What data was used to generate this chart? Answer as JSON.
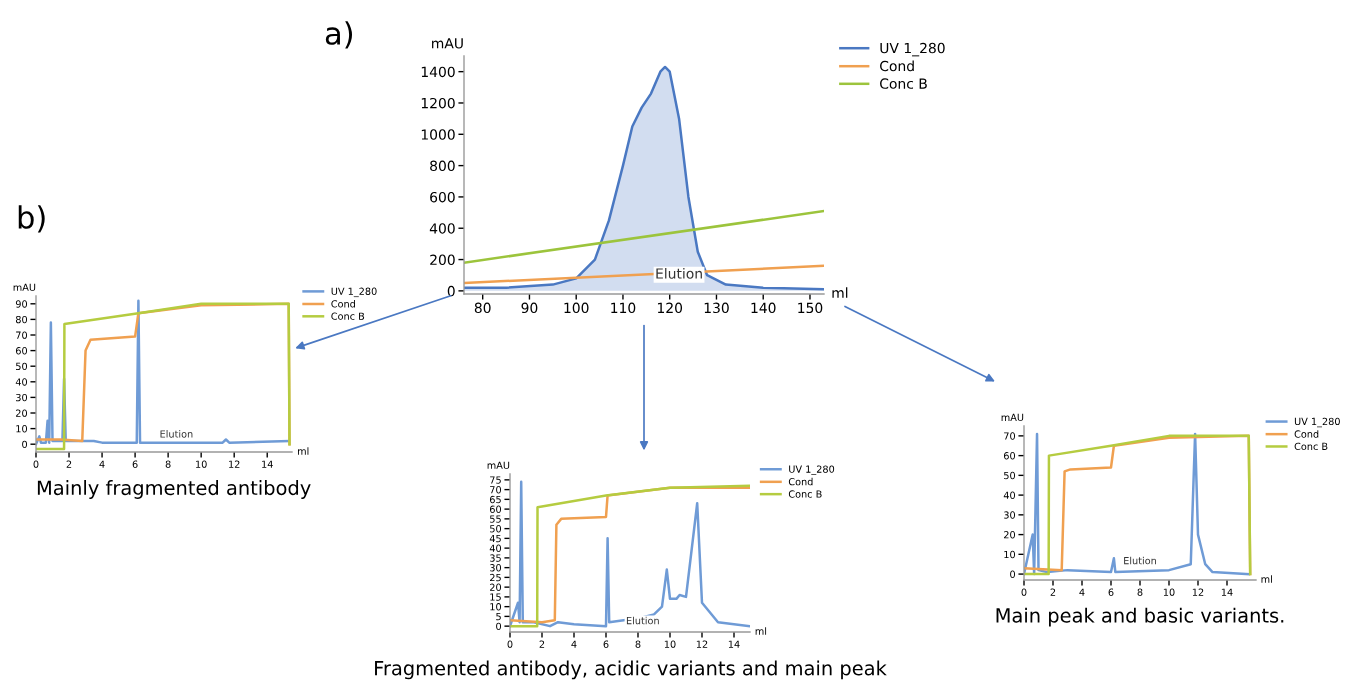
{
  "chart_data": [
    {
      "type": "line",
      "title": "a)",
      "xlabel": "ml",
      "ylabel": "mAU",
      "legend": "top right",
      "grid": false,
      "xlim": [
        76,
        153
      ],
      "xticks": [
        80,
        90,
        100,
        110,
        120,
        130,
        140,
        150
      ],
      "ylim": [
        -20,
        1500
      ],
      "yticks": [
        0,
        200,
        400,
        600,
        800,
        1000,
        1200,
        1400
      ],
      "annotations": [
        {
          "text": "Elution",
          "x": 122,
          "y": 60
        }
      ],
      "series": [
        {
          "name": "UV 1_280",
          "type": "area",
          "color": "#4a78c2",
          "x": [
            76,
            85,
            95,
            100,
            104,
            107,
            110,
            112,
            114,
            116,
            118,
            119,
            120,
            122,
            124,
            126,
            128,
            132,
            140,
            153
          ],
          "values": [
            20,
            20,
            40,
            80,
            200,
            450,
            800,
            1050,
            1170,
            1260,
            1400,
            1430,
            1400,
            1100,
            600,
            250,
            100,
            40,
            20,
            10
          ]
        },
        {
          "name": "Cond",
          "color": "#f0a050",
          "x": [
            76,
            153
          ],
          "values": [
            50,
            160
          ]
        },
        {
          "name": "Conc B",
          "color": "#9cc43c",
          "x": [
            76,
            153
          ],
          "values": [
            180,
            510
          ]
        }
      ]
    },
    {
      "type": "line",
      "title": "b)",
      "xlabel": "ml",
      "ylabel": "mAU",
      "legend": "top right",
      "grid": false,
      "xlim": [
        0,
        15.5
      ],
      "xticks": [
        0,
        2,
        4,
        6,
        8,
        10,
        12,
        14
      ],
      "ylim": [
        -5,
        95
      ],
      "yticks": [
        0,
        10,
        20,
        30,
        40,
        50,
        60,
        70,
        80,
        90
      ],
      "annotations": [
        "Mainly fragmented antibody",
        {
          "text": "Elution",
          "x": 8.5,
          "y": 3
        }
      ],
      "series": [
        {
          "name": "UV 1_280",
          "color": "#6f9bd6",
          "x": [
            0,
            0.2,
            0.3,
            0.6,
            0.7,
            0.8,
            0.9,
            1.0,
            1.6,
            1.7,
            1.8,
            3.5,
            4,
            6.1,
            6.2,
            6.3,
            11.3,
            11.5,
            11.7,
            15.3
          ],
          "values": [
            0,
            5,
            1,
            1,
            15,
            1,
            78,
            2,
            2,
            42,
            2,
            2,
            1,
            1,
            92,
            1,
            1,
            3,
            1,
            2
          ]
        },
        {
          "name": "Cond",
          "color": "#f0a050",
          "x": [
            0,
            1.5,
            2.8,
            3.0,
            3.3,
            6.0,
            6.2,
            10,
            15.3,
            15.35
          ],
          "values": [
            3,
            3,
            2,
            60,
            67,
            69,
            84,
            89,
            90,
            0
          ]
        },
        {
          "name": "Conc B",
          "color": "#b5cc40",
          "x": [
            0,
            1.7,
            1.72,
            6.2,
            10,
            15.3,
            15.35
          ],
          "values": [
            -3,
            -3,
            77,
            84,
            90,
            90,
            0
          ]
        }
      ]
    },
    {
      "type": "line",
      "xlabel": "ml",
      "ylabel": "mAU",
      "legend": "top right",
      "grid": false,
      "xlim": [
        0,
        15
      ],
      "xticks": [
        0,
        2,
        4,
        6,
        8,
        10,
        12,
        14
      ],
      "ylim": [
        -3,
        78
      ],
      "yticks": [
        0,
        5,
        10,
        15,
        20,
        25,
        30,
        35,
        40,
        45,
        50,
        55,
        60,
        65,
        70,
        75
      ],
      "annotations": [
        "Fragmented antibody, acidic variants and main peak",
        {
          "text": "Elution",
          "x": 8.3,
          "y": 0
        }
      ],
      "series": [
        {
          "name": "UV 1_280",
          "color": "#6f9bd6",
          "x": [
            0,
            0.5,
            0.6,
            0.7,
            0.8,
            1.5,
            2.5,
            3,
            4,
            6,
            6.1,
            6.2,
            8,
            9,
            9.5,
            9.8,
            10.0,
            10.4,
            10.6,
            11,
            11.7,
            12,
            13,
            15
          ],
          "values": [
            0,
            12,
            2,
            74,
            2,
            2,
            0,
            2,
            1,
            0,
            45,
            2,
            4,
            6,
            10,
            29,
            14,
            14,
            16,
            15,
            63,
            12,
            2,
            0
          ]
        },
        {
          "name": "Cond",
          "color": "#f0a050",
          "x": [
            0,
            2,
            2.8,
            2.9,
            3.2,
            6.0,
            6.1,
            10,
            15
          ],
          "values": [
            3,
            2,
            3,
            52,
            55,
            56,
            67,
            71,
            71
          ]
        },
        {
          "name": "Conc B",
          "color": "#b5cc40",
          "x": [
            0,
            1.7,
            1.72,
            6,
            10,
            15
          ],
          "values": [
            0,
            0,
            61,
            67,
            71,
            72
          ]
        }
      ]
    },
    {
      "type": "line",
      "xlabel": "ml",
      "ylabel": "mAU",
      "legend": "top right",
      "grid": false,
      "xlim": [
        0,
        16
      ],
      "xticks": [
        0,
        2,
        4,
        6,
        8,
        10,
        12,
        14
      ],
      "ylim": [
        -3,
        75
      ],
      "yticks": [
        0,
        10,
        20,
        30,
        40,
        50,
        60,
        70
      ],
      "annotations": [
        "Main peak and basic variants.",
        {
          "text": "Elution",
          "x": 8,
          "y": 4
        }
      ],
      "series": [
        {
          "name": "UV 1_280",
          "color": "#6f9bd6",
          "x": [
            0,
            0.6,
            0.7,
            0.9,
            1.0,
            1.6,
            3,
            6,
            6.2,
            6.3,
            10,
            11.5,
            11.8,
            12,
            12.5,
            13,
            15.5
          ],
          "values": [
            0,
            20,
            0,
            71,
            2,
            1,
            2,
            1,
            8,
            1,
            2,
            5,
            71,
            20,
            5,
            1,
            0
          ]
        },
        {
          "name": "Cond",
          "color": "#f0a050",
          "x": [
            0,
            2.6,
            2.8,
            3.2,
            6,
            6.2,
            10,
            15.5,
            15.6
          ],
          "values": [
            3,
            2,
            52,
            53,
            54,
            65,
            69,
            70,
            0
          ]
        },
        {
          "name": "Conc B",
          "color": "#b5cc40",
          "x": [
            0,
            1.7,
            1.72,
            6,
            10,
            15.5,
            15.6
          ],
          "values": [
            0,
            0,
            60,
            65,
            70,
            70,
            0
          ]
        }
      ]
    }
  ]
}
